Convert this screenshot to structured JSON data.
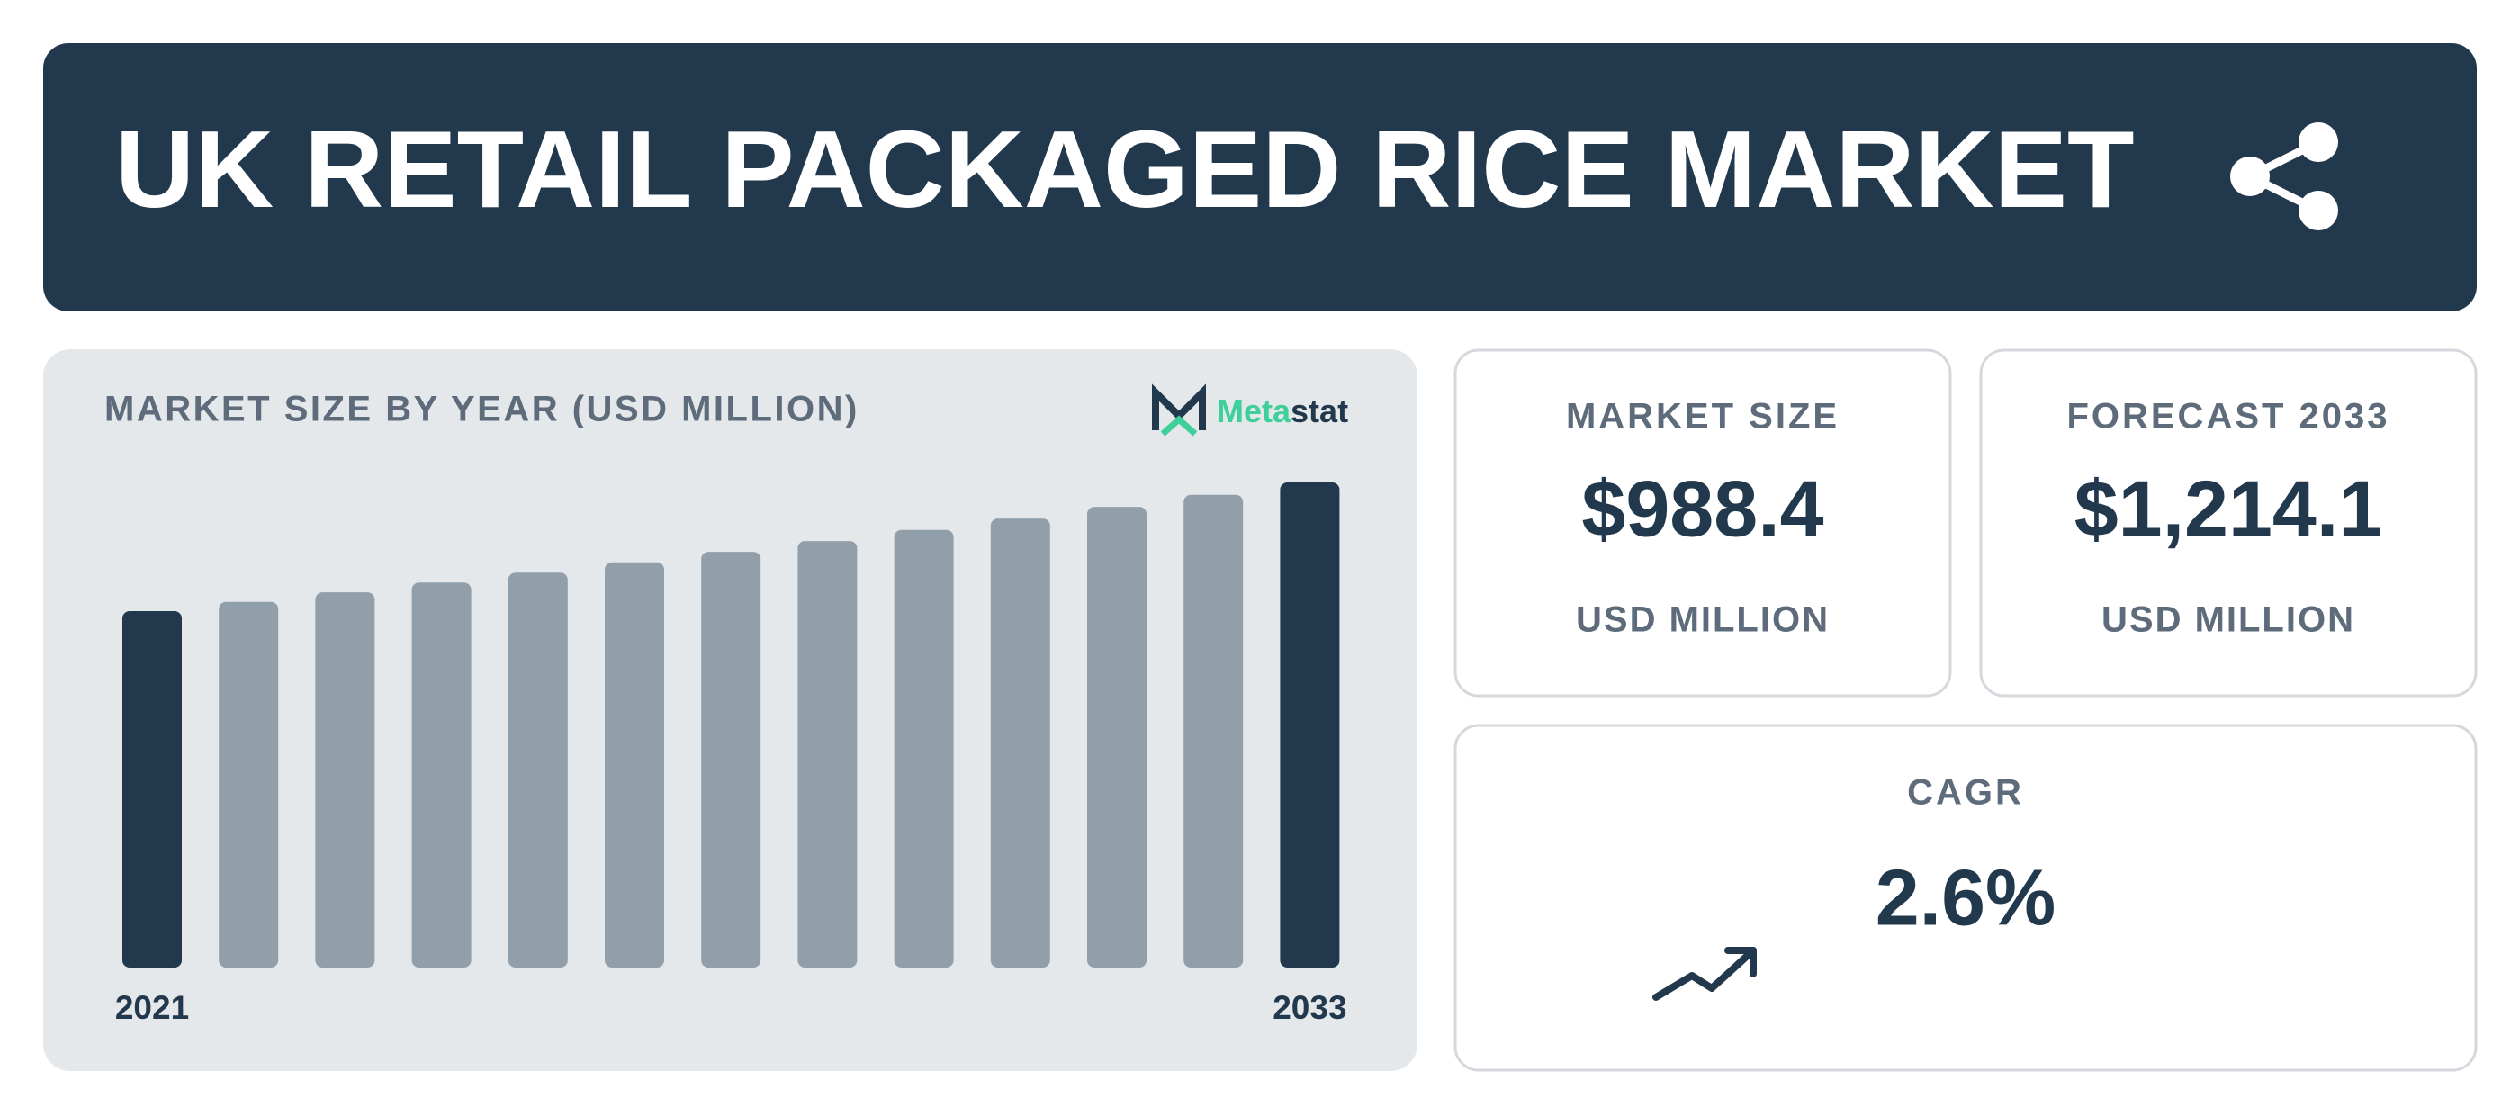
{
  "header": {
    "title": "UK RETAIL PACKAGED RICE MARKET"
  },
  "chart_data": {
    "type": "bar",
    "title": "MARKET SIZE BY YEAR (USD MILLION)",
    "categories": [
      "2021",
      null,
      null,
      null,
      null,
      null,
      null,
      null,
      null,
      null,
      null,
      null,
      "2033"
    ],
    "values": [
      892.0,
      915.2,
      939.0,
      963.4,
      988.4,
      1014.1,
      1040.5,
      1067.5,
      1095.3,
      1123.8,
      1153.0,
      1183.0,
      1214.1
    ],
    "colors": [
      "#22384d",
      "#919fab",
      "#919fab",
      "#919fab",
      "#919fab",
      "#919fab",
      "#919fab",
      "#919fab",
      "#919fab",
      "#919fab",
      "#919fab",
      "#919fab",
      "#22384d"
    ]
  },
  "brand": {
    "first": "Meta",
    "second": "stat"
  },
  "kpis": [
    {
      "label": "MARKET SIZE",
      "value": "$988.4",
      "unit": "USD MILLION"
    },
    {
      "label": "FORECAST 2033",
      "value": "$1,214.1",
      "unit": "USD MILLION"
    },
    {
      "label": "CAGR",
      "value": "2.6%"
    }
  ]
}
